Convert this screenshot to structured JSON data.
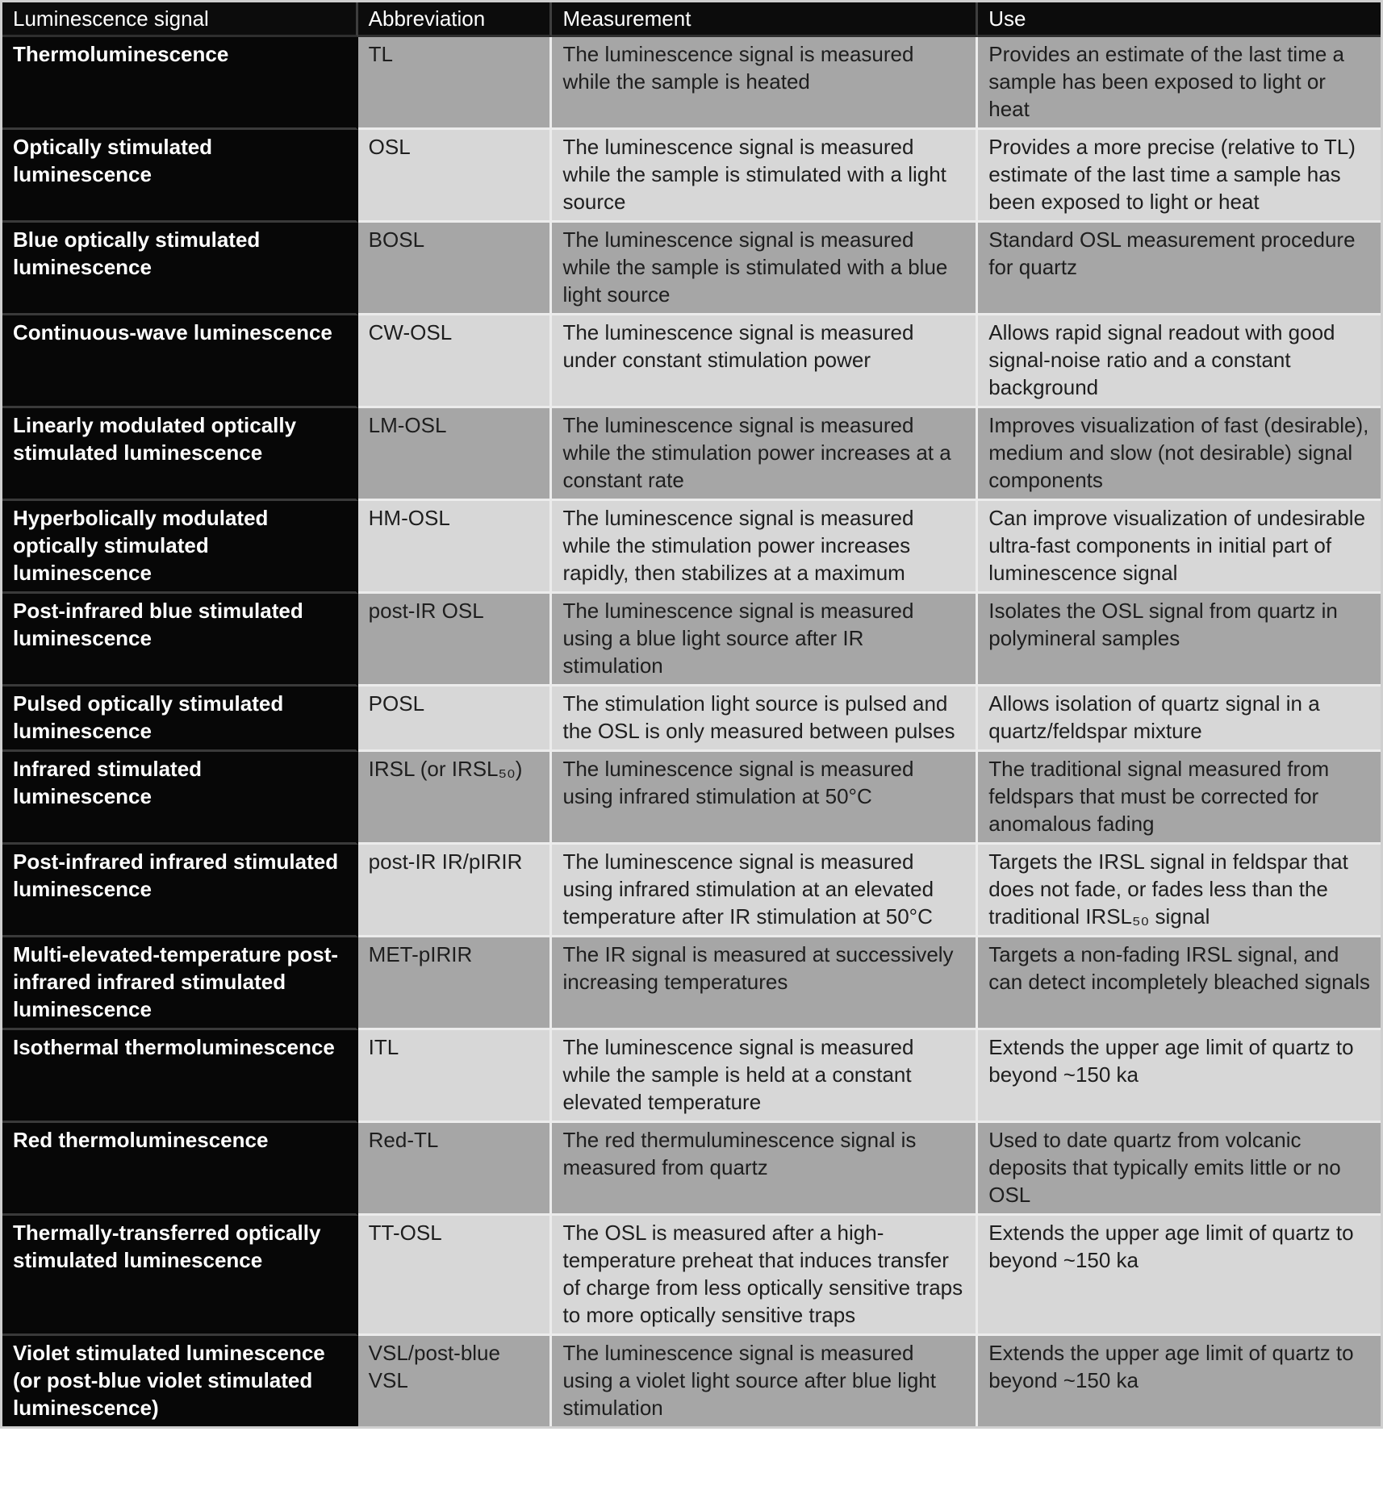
{
  "colors": {
    "header_bg": "#0c0c0c",
    "header_text": "#ffffff",
    "signal_col_bg": "#070707",
    "signal_text": "#ffffff",
    "row_dark_bg": "#a6a6a6",
    "row_light_bg": "#d7d7d7",
    "body_text": "#1e1e1e"
  },
  "table": {
    "columns": [
      {
        "label": "Luminescence signal"
      },
      {
        "label": "Abbreviation"
      },
      {
        "label": "Measurement"
      },
      {
        "label": "Use"
      }
    ],
    "rows": [
      {
        "signal": "Thermoluminescence",
        "abbreviation": "TL",
        "measurement": "The luminescence signal is measured while the sample is heated",
        "use": "Provides an estimate of the last time a sample has been exposed to light or heat"
      },
      {
        "signal": "Optically stimulated luminescence",
        "abbreviation": "OSL",
        "measurement": "The luminescence signal is measured while the sample is stimulated with a light source",
        "use": "Provides a more precise (relative to TL) estimate of the last time a sample has been exposed to light or heat"
      },
      {
        "signal": "Blue optically stimulated luminescence",
        "abbreviation": "BOSL",
        "measurement": "The luminescence signal is measured while the sample is stimulated with a blue light source",
        "use": "Standard OSL measurement procedure for quartz"
      },
      {
        "signal": "Continuous-wave luminescence",
        "abbreviation": "CW-OSL",
        "measurement": "The luminescence signal is measured under constant stimulation power",
        "use": "Allows rapid signal readout with good signal-noise ratio and a constant background"
      },
      {
        "signal": "Linearly modulated optically stimulated luminescence",
        "abbreviation": "LM-OSL",
        "measurement": "The luminescence signal is measured while the stimulation power increases at a constant rate",
        "use": "Improves visualization of fast (desirable), medium and slow (not desirable) signal components"
      },
      {
        "signal": "Hyperbolically modulated optically stimulated luminescence",
        "abbreviation": "HM-OSL",
        "measurement": "The luminescence signal is measured while the stimulation power increases rapidly, then stabilizes at a maximum",
        "use": "Can improve visualization of undesirable ultra-fast components in initial part of luminescence signal"
      },
      {
        "signal": "Post-infrared blue stimulated luminescence",
        "abbreviation": "post-IR OSL",
        "measurement": "The luminescence signal is measured using a blue light source after IR stimulation",
        "use": "Isolates the OSL signal from quartz in polymineral samples"
      },
      {
        "signal": "Pulsed optically stimulated luminescence",
        "abbreviation": "POSL",
        "measurement": "The stimulation light source is pulsed and the OSL is only measured between pulses",
        "use": "Allows isolation of quartz signal in a quartz/feldspar mixture"
      },
      {
        "signal": "Infrared stimulated luminescence",
        "abbreviation": "IRSL (or IRSL₅₀)",
        "measurement": "The luminescence signal is measured using infrared stimulation at 50°C",
        "use": "The traditional signal measured from feldspars that must be corrected for anomalous fading"
      },
      {
        "signal": "Post-infrared infrared stimulated luminescence",
        "abbreviation": "post-IR IR/pIRIR",
        "measurement": "The luminescence signal is measured using infrared stimulation at an elevated temperature after IR stimulation at 50°C",
        "use": "Targets the IRSL signal in feldspar that does not fade, or fades less than the traditional IRSL₅₀ signal"
      },
      {
        "signal": "Multi-elevated-temperature post-infrared infrared stimulated luminescence",
        "abbreviation": "MET-pIRIR",
        "measurement": "The IR signal is measured at successively increasing temperatures",
        "use": "Targets a non-fading IRSL signal, and can detect incompletely bleached signals"
      },
      {
        "signal": "Isothermal thermoluminescence",
        "abbreviation": "ITL",
        "measurement": "The luminescence signal is measured while the sample is held at a constant elevated temperature",
        "use": "Extends the upper age limit of quartz to beyond ~150 ka"
      },
      {
        "signal": "Red thermoluminescence",
        "abbreviation": "Red-TL",
        "measurement": "The red thermuluminescence signal is measured from quartz",
        "use": "Used to date quartz from volcanic deposits that typically emits little or no OSL"
      },
      {
        "signal": "Thermally-transferred optically stimulated luminescence",
        "abbreviation": "TT-OSL",
        "measurement": "The OSL is measured after a high-temperature preheat that induces transfer of charge from less optically sensitive traps to more optically sensitive traps",
        "use": "Extends the upper age limit of quartz to beyond ~150 ka"
      },
      {
        "signal": "Violet stimulated luminescence (or post-blue violet stimulated luminescence)",
        "abbreviation": "VSL/post-blue VSL",
        "measurement": "The luminescence signal is measured using a violet light source after blue light stimulation",
        "use": "Extends the upper age limit of quartz to beyond ~150 ka"
      }
    ]
  }
}
